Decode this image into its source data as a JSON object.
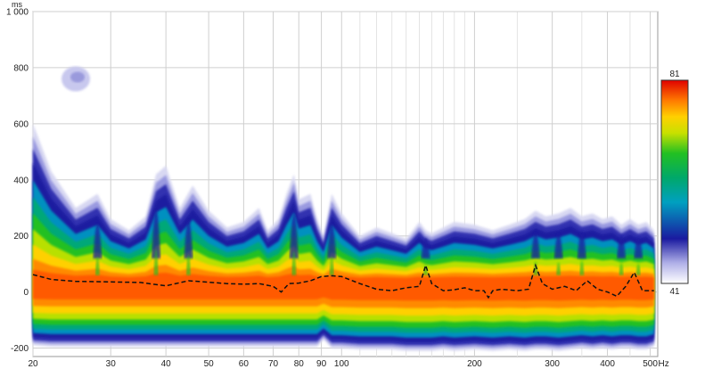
{
  "chart_data": {
    "type": "heatmap",
    "title": "",
    "xlabel": "",
    "ylabel": "",
    "x_unit": "Hz",
    "y_unit": "ms",
    "x_scale": "log",
    "xlim": [
      20,
      520
    ],
    "ylim": [
      -230,
      1000
    ],
    "x_ticks": [
      {
        "value": 20,
        "label": "20"
      },
      {
        "value": 30,
        "label": "30"
      },
      {
        "value": 40,
        "label": "40"
      },
      {
        "value": 50,
        "label": "50"
      },
      {
        "value": 60,
        "label": "60"
      },
      {
        "value": 70,
        "label": "70"
      },
      {
        "value": 80,
        "label": "80"
      },
      {
        "value": 90,
        "label": "90"
      },
      {
        "value": 100,
        "label": "100"
      },
      {
        "value": 200,
        "label": "200"
      },
      {
        "value": 300,
        "label": "300"
      },
      {
        "value": 400,
        "label": "400"
      },
      {
        "value": 500,
        "label": "500"
      }
    ],
    "y_ticks": [
      {
        "value": 1000,
        "label": "1 000"
      },
      {
        "value": 800,
        "label": "800"
      },
      {
        "value": 600,
        "label": "600"
      },
      {
        "value": 400,
        "label": "400"
      },
      {
        "value": 200,
        "label": "200"
      },
      {
        "value": 0,
        "label": "0"
      },
      {
        "value": -200,
        "label": "-200"
      }
    ],
    "grid": true,
    "colorbar": {
      "min_label": "41",
      "max_label": "81",
      "colors": [
        "#ffffff",
        "#8a8ad8",
        "#1a1aa0",
        "#00a0c0",
        "#00a86a",
        "#22c022",
        "#c8e000",
        "#ffd000",
        "#ff7a00",
        "#e00000"
      ]
    },
    "peak_line": {
      "style": "dashed",
      "x": [
        20,
        22,
        25,
        30,
        35,
        40,
        45,
        50,
        55,
        60,
        65,
        70,
        73,
        76,
        80,
        85,
        90,
        95,
        100,
        110,
        120,
        130,
        140,
        150,
        155,
        160,
        170,
        180,
        190,
        200,
        210,
        215,
        220,
        230,
        250,
        265,
        275,
        285,
        300,
        320,
        340,
        360,
        380,
        400,
        420,
        440,
        460,
        480,
        510
      ],
      "y": [
        62,
        45,
        38,
        36,
        34,
        22,
        40,
        35,
        30,
        28,
        30,
        20,
        0,
        30,
        32,
        40,
        55,
        58,
        55,
        30,
        10,
        5,
        15,
        20,
        95,
        30,
        5,
        8,
        15,
        5,
        5,
        -20,
        5,
        10,
        5,
        10,
        95,
        30,
        10,
        20,
        5,
        40,
        10,
        0,
        -15,
        20,
        70,
        5,
        5
      ]
    },
    "decay_envelope": {
      "description_free": true,
      "x": [
        20,
        22,
        25,
        28,
        30,
        33,
        36,
        38,
        40,
        43,
        46,
        50,
        55,
        60,
        65,
        68,
        72,
        75,
        78,
        80,
        85,
        88,
        91,
        95,
        100,
        110,
        120,
        130,
        140,
        150,
        155,
        160,
        170,
        180,
        200,
        220,
        240,
        260,
        275,
        290,
        310,
        330,
        350,
        370,
        390,
        410,
        430,
        450,
        470,
        490,
        510
      ],
      "top": [
        600,
        430,
        300,
        350,
        260,
        220,
        270,
        420,
        450,
        300,
        380,
        290,
        230,
        250,
        300,
        220,
        260,
        350,
        420,
        330,
        350,
        260,
        200,
        350,
        280,
        200,
        230,
        210,
        190,
        250,
        220,
        210,
        230,
        250,
        240,
        220,
        240,
        260,
        290,
        270,
        280,
        300,
        270,
        280,
        260,
        270,
        240,
        260,
        240,
        250,
        220
      ],
      "bottom": [
        -190,
        -195,
        -195,
        -195,
        -195,
        -195,
        -195,
        -195,
        -195,
        -195,
        -195,
        -195,
        -195,
        -195,
        -195,
        -195,
        -195,
        -195,
        -195,
        -195,
        -195,
        -195,
        -170,
        -200,
        -200,
        -205,
        -205,
        -205,
        -210,
        -210,
        -210,
        -210,
        -205,
        -210,
        -205,
        -210,
        -205,
        -210,
        -205,
        -205,
        -210,
        -205,
        -200,
        -205,
        -200,
        -205,
        -200,
        -200,
        -205,
        -205,
        -195
      ]
    },
    "ridges": [
      {
        "x": 28,
        "top": 350
      },
      {
        "x": 38,
        "top": 450
      },
      {
        "x": 45,
        "top": 380
      },
      {
        "x": 78,
        "top": 420
      },
      {
        "x": 95,
        "top": 350
      },
      {
        "x": 155,
        "top": 250
      },
      {
        "x": 275,
        "top": 290
      },
      {
        "x": 310,
        "top": 280
      },
      {
        "x": 350,
        "top": 300
      },
      {
        "x": 430,
        "top": 270
      },
      {
        "x": 470,
        "top": 260
      }
    ],
    "blob": {
      "x": 25,
      "y": 760
    }
  }
}
